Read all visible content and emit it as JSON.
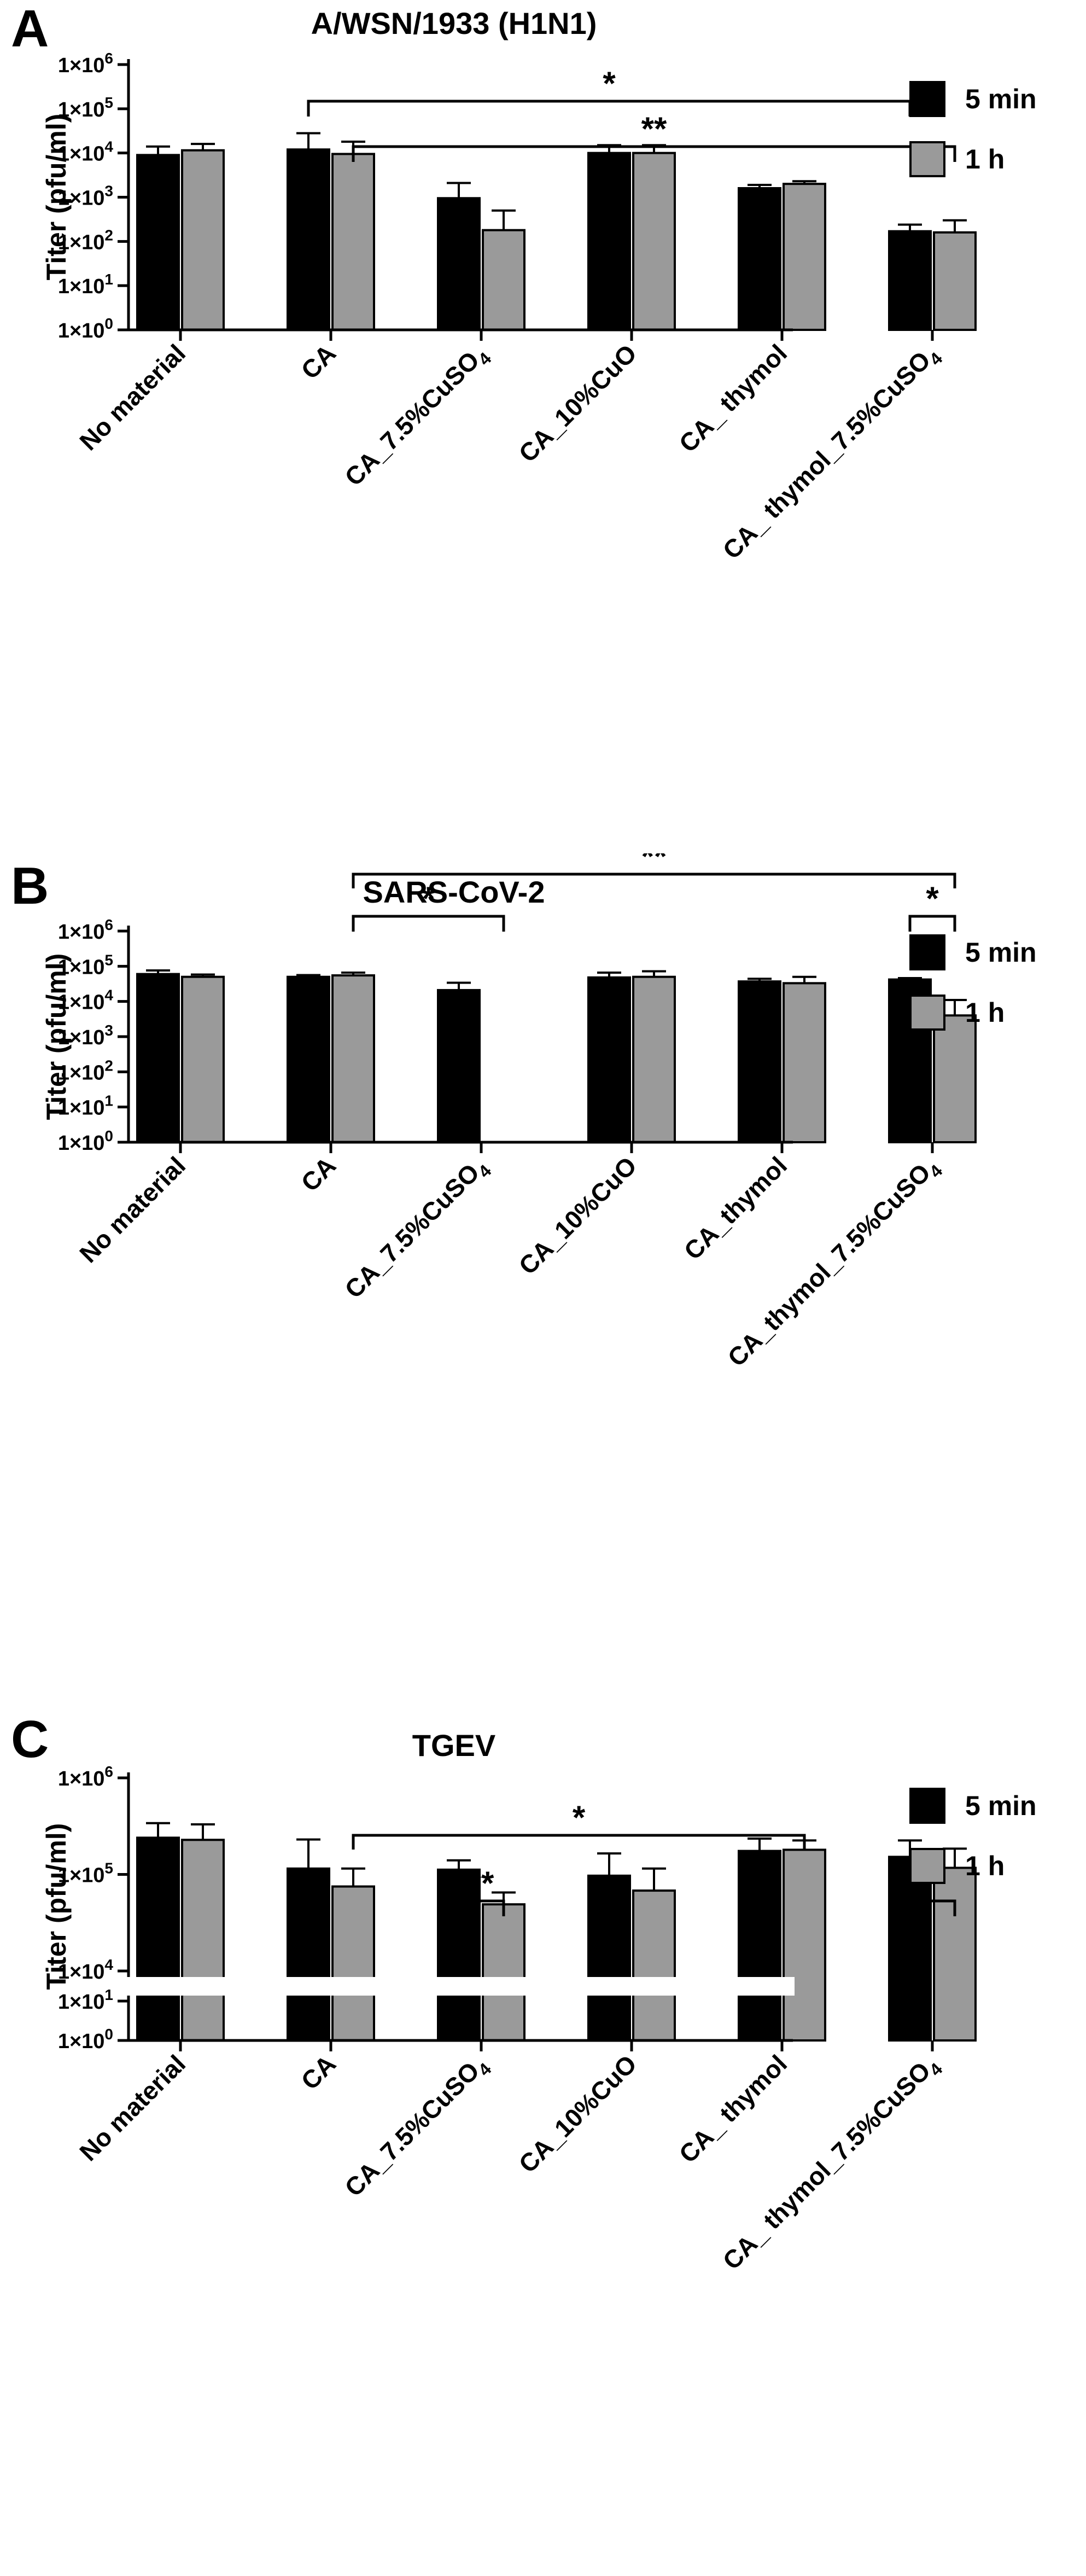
{
  "figure": {
    "legend": {
      "items": [
        {
          "label": "5 min",
          "color": "#000000"
        },
        {
          "label": "1 h",
          "color": "#9a9a9a"
        }
      ]
    }
  },
  "chart_data": [
    {
      "panel_letter": "A",
      "type": "bar",
      "title": "A/WSN/1933 (H1N1)",
      "ylabel": "Titer (pfu/ml)",
      "xlabel": "",
      "yscale": "log",
      "ylim": [
        1,
        1000000
      ],
      "yticks": [
        {
          "value": 1,
          "base": "1×10",
          "exp": "0"
        },
        {
          "value": 10,
          "base": "1×10",
          "exp": "1"
        },
        {
          "value": 100,
          "base": "1×10",
          "exp": "2"
        },
        {
          "value": 1000,
          "base": "1×10",
          "exp": "3"
        },
        {
          "value": 10000,
          "base": "1×10",
          "exp": "4"
        },
        {
          "value": 100000,
          "base": "1×10",
          "exp": "5"
        },
        {
          "value": 1000000,
          "base": "1×10",
          "exp": "6"
        }
      ],
      "categories": [
        {
          "main": "No material",
          "sub": ""
        },
        {
          "main": "CA",
          "sub": ""
        },
        {
          "main": "CA_7.5%CuSO",
          "sub": "4"
        },
        {
          "main": "CA_10%CuO",
          "sub": ""
        },
        {
          "main": "CA_ thymol",
          "sub": ""
        },
        {
          "main": "CA_ thymol_7.5%CuSO",
          "sub": "4"
        }
      ],
      "series": [
        {
          "name": "5 min",
          "values": [
            9000,
            12000,
            950,
            10000,
            1600,
            170
          ],
          "errors": [
            14000,
            28000,
            2100,
            15000,
            1900,
            240
          ]
        },
        {
          "name": "1 h",
          "values": [
            11500,
            9500,
            180,
            10000,
            2000,
            160
          ],
          "errors": [
            16000,
            18000,
            500,
            15000,
            2300,
            300
          ]
        }
      ],
      "significance": [
        {
          "from": [
            1,
            0
          ],
          "to": [
            5,
            0
          ],
          "label": "*"
        },
        {
          "from": [
            1,
            1
          ],
          "to": [
            5,
            1
          ],
          "label": "**"
        }
      ],
      "legend_position": "top-right",
      "grid": false
    },
    {
      "panel_letter": "B",
      "type": "bar",
      "title": "SARS-CoV-2",
      "ylabel": "Titer (pfu/ml)",
      "xlabel": "",
      "yscale": "log",
      "ylim": [
        1,
        1000000
      ],
      "yticks": [
        {
          "value": 1,
          "base": "1×10",
          "exp": "0"
        },
        {
          "value": 10,
          "base": "1×10",
          "exp": "1"
        },
        {
          "value": 100,
          "base": "1×10",
          "exp": "2"
        },
        {
          "value": 1000,
          "base": "1×10",
          "exp": "3"
        },
        {
          "value": 10000,
          "base": "1×10",
          "exp": "4"
        },
        {
          "value": 100000,
          "base": "1×10",
          "exp": "5"
        },
        {
          "value": 1000000,
          "base": "1×10",
          "exp": "6"
        }
      ],
      "categories": [
        {
          "main": "No material",
          "sub": ""
        },
        {
          "main": "CA",
          "sub": ""
        },
        {
          "main": "CA_7.5%CuSO",
          "sub": "4"
        },
        {
          "main": "CA_10%CuO",
          "sub": ""
        },
        {
          "main": "CA_thymol",
          "sub": ""
        },
        {
          "main": "CA_thymol_7.5%CuSO",
          "sub": "4"
        }
      ],
      "series": [
        {
          "name": "5 min",
          "values": [
            60000,
            50000,
            21000,
            48000,
            37000,
            42000
          ],
          "errors": [
            76000,
            56000,
            34000,
            66000,
            44000,
            46000
          ]
        },
        {
          "name": "1 h",
          "values": [
            50000,
            55000,
            null,
            50000,
            33000,
            4000
          ],
          "errors": [
            58000,
            66000,
            null,
            72000,
            50000,
            11000
          ]
        }
      ],
      "significance": [
        {
          "from": [
            1,
            1
          ],
          "to": [
            5,
            1
          ],
          "label": "**"
        },
        {
          "from": [
            1,
            1
          ],
          "to": [
            2,
            1
          ],
          "label": "*"
        },
        {
          "from": [
            5,
            0
          ],
          "to": [
            5,
            1
          ],
          "label": "*"
        }
      ],
      "legend_position": "top-right",
      "grid": false
    },
    {
      "panel_letter": "C",
      "type": "bar",
      "title": "TGEV",
      "ylabel": "Titer (pfu/ml)",
      "xlabel": "",
      "yscale": "log",
      "y_axis_break": [
        10,
        10000
      ],
      "ylim": [
        1,
        1000000
      ],
      "yticks": [
        {
          "value": 1,
          "base": "1×10",
          "exp": "0"
        },
        {
          "value": 10,
          "base": "1×10",
          "exp": "1"
        },
        {
          "value": 10000,
          "base": "1×10",
          "exp": "4"
        },
        {
          "value": 100000,
          "base": "1×10",
          "exp": "5"
        },
        {
          "value": 1000000,
          "base": "1×10",
          "exp": "6"
        }
      ],
      "categories": [
        {
          "main": "No material",
          "sub": ""
        },
        {
          "main": "CA",
          "sub": ""
        },
        {
          "main": "CA_7.5%CuSO",
          "sub": "4"
        },
        {
          "main": "CA_10%CuO",
          "sub": ""
        },
        {
          "main": "CA_ thymol",
          "sub": ""
        },
        {
          "main": "CA_ thymol_7.5%CuSO",
          "sub": "4"
        }
      ],
      "series": [
        {
          "name": "5 min",
          "values": [
            240000,
            115000,
            112000,
            97000,
            175000,
            152000
          ],
          "errors": [
            340000,
            230000,
            140000,
            165000,
            235000,
            225000
          ]
        },
        {
          "name": "1 h",
          "values": [
            228000,
            75000,
            49000,
            68000,
            180000,
            117000
          ],
          "errors": [
            330000,
            115000,
            65000,
            115000,
            225000,
            185000
          ]
        }
      ],
      "significance": [
        {
          "from": [
            1,
            1
          ],
          "to": [
            4,
            1
          ],
          "label": "*"
        },
        {
          "from": [
            2,
            0
          ],
          "to": [
            2,
            1
          ],
          "label": "**"
        },
        {
          "from": [
            5,
            0
          ],
          "to": [
            5,
            1
          ],
          "label": "**"
        }
      ],
      "legend_position": "top-right",
      "grid": false
    }
  ]
}
